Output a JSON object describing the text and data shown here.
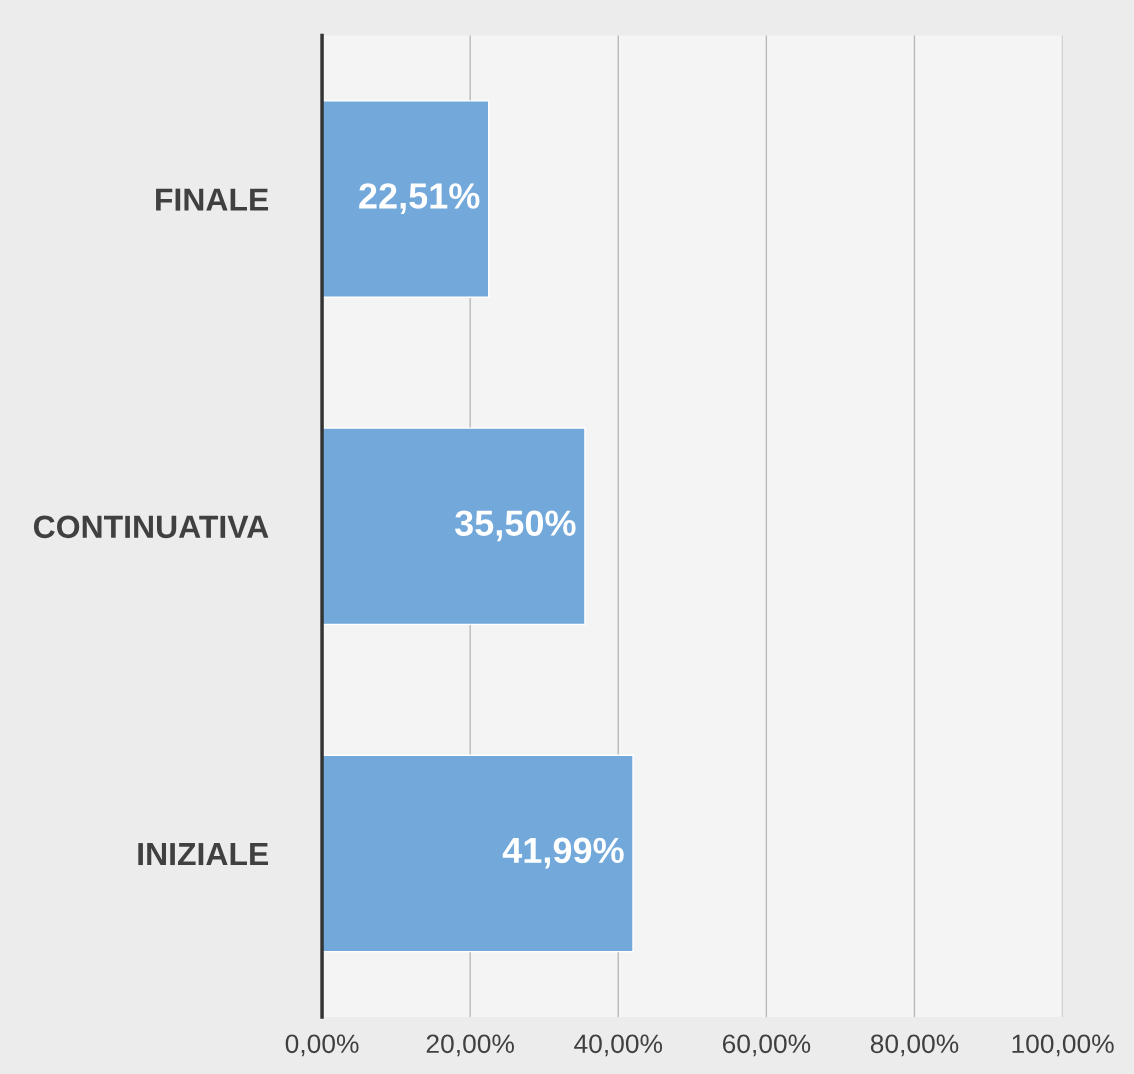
{
  "chart_data": {
    "type": "bar",
    "orientation": "horizontal",
    "categories": [
      "FINALE",
      "CONTINUATIVA",
      "INIZIALE"
    ],
    "values": [
      22.51,
      35.5,
      41.99
    ],
    "value_labels": [
      "22,51%",
      "35,50%",
      "41,99%"
    ],
    "color": "#72a8da",
    "xlim": [
      0,
      100
    ],
    "xticks": [
      {
        "value": 0,
        "label": "0,00%"
      },
      {
        "value": 20,
        "label": "20,00%"
      },
      {
        "value": 40,
        "label": "40,00%"
      },
      {
        "value": 60,
        "label": "60,00%"
      },
      {
        "value": 80,
        "label": "80,00%"
      },
      {
        "value": 100,
        "label": "100,00%"
      }
    ],
    "grid": "x",
    "legend": false
  }
}
